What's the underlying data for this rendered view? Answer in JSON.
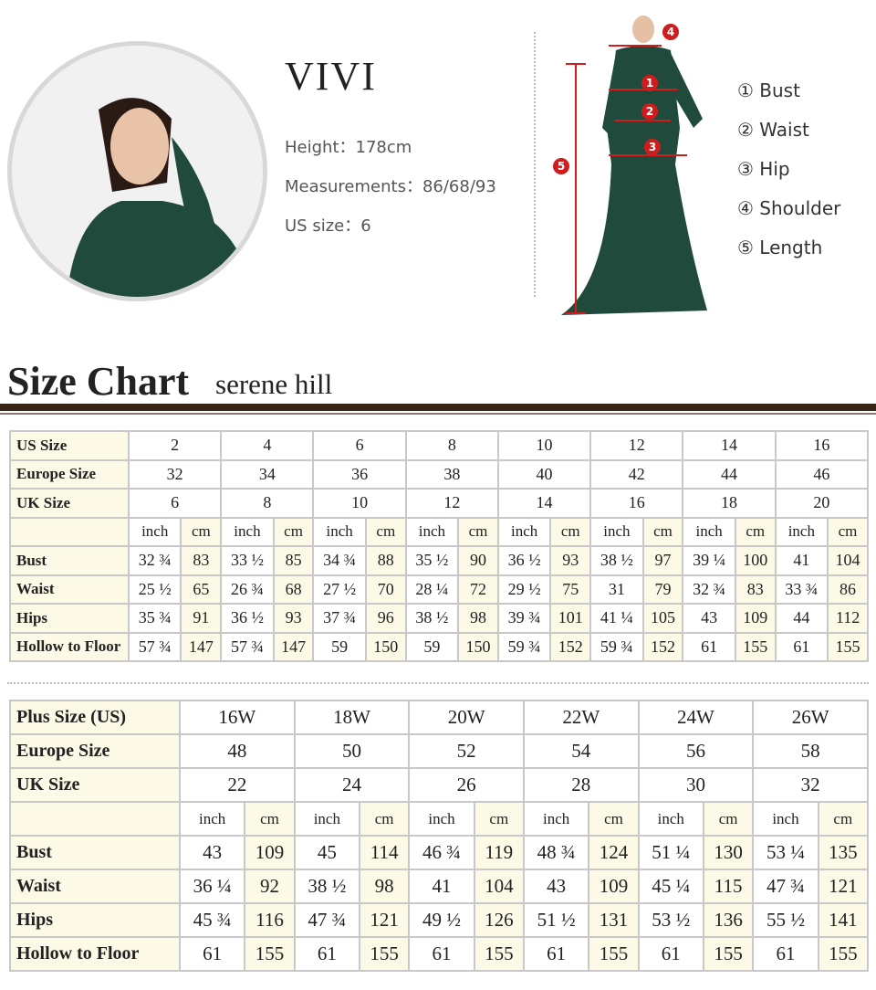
{
  "model": {
    "name": "VIVI",
    "height": "Height：178cm",
    "measurements": "Measurements：86/68/93",
    "us_size": "US size：6"
  },
  "legend": [
    "① Bust",
    "② Waist",
    "③ Hip",
    "④ Shoulder",
    "⑤ Length"
  ],
  "markers": [
    "1",
    "2",
    "3",
    "4",
    "5"
  ],
  "header": {
    "title": "Size Chart",
    "subtitle": "serene hill"
  },
  "colors": {
    "dress": "#1f4a3c",
    "marker": "#d01c1c",
    "bar": "#3a2418"
  },
  "table1": {
    "us": {
      "label": "US Size",
      "values": [
        "2",
        "4",
        "6",
        "8",
        "10",
        "12",
        "14",
        "16"
      ]
    },
    "eu": {
      "label": "Europe Size",
      "values": [
        "32",
        "34",
        "36",
        "38",
        "40",
        "42",
        "44",
        "46"
      ]
    },
    "uk": {
      "label": "UK Size",
      "values": [
        "6",
        "8",
        "10",
        "12",
        "14",
        "16",
        "18",
        "20"
      ]
    },
    "units": [
      "inch",
      "cm"
    ],
    "rows": [
      {
        "label": "Bust",
        "values": [
          "32 ¾",
          "83",
          "33 ½",
          "85",
          "34 ¾",
          "88",
          "35 ½",
          "90",
          "36 ½",
          "93",
          "38 ½",
          "97",
          "39 ¼",
          "100",
          "41",
          "104"
        ]
      },
      {
        "label": "Waist",
        "values": [
          "25 ½",
          "65",
          "26 ¾",
          "68",
          "27 ½",
          "70",
          "28 ¼",
          "72",
          "29 ½",
          "75",
          "31",
          "79",
          "32 ¾",
          "83",
          "33 ¾",
          "86"
        ]
      },
      {
        "label": "Hips",
        "values": [
          "35 ¾",
          "91",
          "36 ½",
          "93",
          "37 ¾",
          "96",
          "38 ½",
          "98",
          "39 ¾",
          "101",
          "41 ¼",
          "105",
          "43",
          "109",
          "44",
          "112"
        ]
      },
      {
        "label": "Hollow to Floor",
        "values": [
          "57 ¾",
          "147",
          "57 ¾",
          "147",
          "59",
          "150",
          "59",
          "150",
          "59 ¾",
          "152",
          "59 ¾",
          "152",
          "61",
          "155",
          "61",
          "155"
        ]
      }
    ]
  },
  "table2": {
    "us": {
      "label": "Plus Size (US)",
      "values": [
        "16W",
        "18W",
        "20W",
        "22W",
        "24W",
        "26W"
      ]
    },
    "eu": {
      "label": "Europe Size",
      "values": [
        "48",
        "50",
        "52",
        "54",
        "56",
        "58"
      ]
    },
    "uk": {
      "label": "UK Size",
      "values": [
        "22",
        "24",
        "26",
        "28",
        "30",
        "32"
      ]
    },
    "units": [
      "inch",
      "cm"
    ],
    "rows": [
      {
        "label": "Bust",
        "values": [
          "43",
          "109",
          "45",
          "114",
          "46 ¾",
          "119",
          "48 ¾",
          "124",
          "51 ¼",
          "130",
          "53 ¼",
          "135"
        ]
      },
      {
        "label": "Waist",
        "values": [
          "36 ¼",
          "92",
          "38 ½",
          "98",
          "41",
          "104",
          "43",
          "109",
          "45 ¼",
          "115",
          "47 ¾",
          "121"
        ]
      },
      {
        "label": "Hips",
        "values": [
          "45 ¾",
          "116",
          "47 ¾",
          "121",
          "49 ½",
          "126",
          "51 ½",
          "131",
          "53 ½",
          "136",
          "55 ½",
          "141"
        ]
      },
      {
        "label": "Hollow to Floor",
        "values": [
          "61",
          "155",
          "61",
          "155",
          "61",
          "155",
          "61",
          "155",
          "61",
          "155",
          "61",
          "155"
        ]
      }
    ]
  }
}
